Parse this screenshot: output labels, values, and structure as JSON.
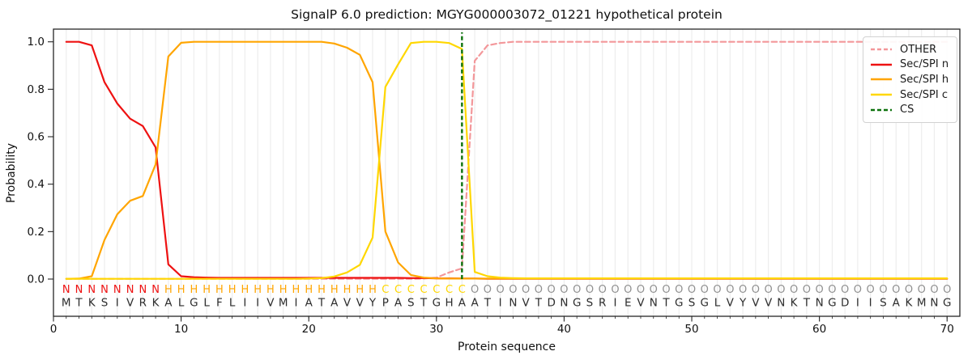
{
  "chart_data": {
    "type": "line",
    "title": "SignalP 6.0 prediction: MGYG000003072_01221 hypothetical protein",
    "xlabel": "Protein sequence",
    "ylabel": "Probability",
    "xlim": [
      0,
      71
    ],
    "ylim": [
      -0.157,
      1.053
    ],
    "x_ticks": [
      0,
      10,
      20,
      30,
      40,
      50,
      60,
      70
    ],
    "y_ticks": [
      0.0,
      0.2,
      0.4,
      0.6,
      0.8,
      1.0
    ],
    "grid": "vertical gridline at every residue position",
    "legend_position": "upper right",
    "x": "residue positions 1-70",
    "series": [
      {
        "name": "OTHER",
        "color": "#f3979a",
        "style": "dashed",
        "values": [
          0.001,
          0.001,
          0.001,
          0.001,
          0.001,
          0.001,
          0.001,
          0.001,
          0.001,
          0.001,
          0.001,
          0.001,
          0.001,
          0.001,
          0.001,
          0.001,
          0.001,
          0.001,
          0.001,
          0.001,
          0.001,
          0.001,
          0.001,
          0.001,
          0.001,
          0.001,
          0.001,
          0.001,
          0.002,
          0.006,
          0.028,
          0.045,
          0.92,
          0.985,
          0.995,
          1.0,
          1.0,
          1.0,
          1.0,
          1.0,
          1.0,
          1.0,
          1.0,
          1.0,
          1.0,
          1.0,
          1.0,
          1.0,
          1.0,
          1.0,
          1.0,
          1.0,
          1.0,
          1.0,
          1.0,
          1.0,
          1.0,
          1.0,
          1.0,
          1.0,
          1.0,
          1.0,
          1.0,
          1.0,
          1.0,
          1.0,
          1.0,
          1.0,
          1.0,
          1.0
        ]
      },
      {
        "name": "Sec/SPI n",
        "color": "#ee1111",
        "style": "solid",
        "values": [
          1.0,
          1.0,
          0.985,
          0.83,
          0.74,
          0.676,
          0.645,
          0.555,
          0.062,
          0.012,
          0.008,
          0.006,
          0.005,
          0.005,
          0.005,
          0.005,
          0.005,
          0.005,
          0.005,
          0.005,
          0.005,
          0.005,
          0.005,
          0.005,
          0.005,
          0.005,
          0.005,
          0.004,
          0.004,
          0.003,
          0.003,
          0.002,
          0.002,
          0.001,
          0.001,
          0.001,
          0.001,
          0.001,
          0.001,
          0.001,
          0.001,
          0.001,
          0.001,
          0.001,
          0.001,
          0.001,
          0.001,
          0.001,
          0.001,
          0.001,
          0.001,
          0.001,
          0.001,
          0.001,
          0.001,
          0.001,
          0.001,
          0.001,
          0.001,
          0.001,
          0.001,
          0.001,
          0.001,
          0.001,
          0.001,
          0.001,
          0.001,
          0.001,
          0.001,
          0.001
        ]
      },
      {
        "name": "Sec/SPI h",
        "color": "#ffa500",
        "style": "solid",
        "values": [
          0.001,
          0.002,
          0.012,
          0.165,
          0.273,
          0.33,
          0.35,
          0.483,
          0.938,
          0.996,
          1.0,
          1.0,
          1.0,
          1.0,
          1.0,
          1.0,
          1.0,
          1.0,
          1.0,
          1.0,
          1.0,
          0.993,
          0.975,
          0.945,
          0.83,
          0.2,
          0.07,
          0.017,
          0.006,
          0.003,
          0.002,
          0.002,
          0.002,
          0.002,
          0.002,
          0.002,
          0.002,
          0.002,
          0.002,
          0.002,
          0.002,
          0.002,
          0.002,
          0.002,
          0.002,
          0.002,
          0.002,
          0.002,
          0.002,
          0.002,
          0.002,
          0.002,
          0.002,
          0.002,
          0.002,
          0.002,
          0.002,
          0.002,
          0.002,
          0.002,
          0.002,
          0.002,
          0.002,
          0.002,
          0.002,
          0.002,
          0.002,
          0.002,
          0.002,
          0.002
        ]
      },
      {
        "name": "Sec/SPI c",
        "color": "#ffd700",
        "style": "solid",
        "values": [
          0.001,
          0.001,
          0.001,
          0.001,
          0.001,
          0.001,
          0.001,
          0.001,
          0.001,
          0.001,
          0.001,
          0.001,
          0.001,
          0.001,
          0.001,
          0.001,
          0.001,
          0.001,
          0.001,
          0.002,
          0.004,
          0.011,
          0.028,
          0.06,
          0.175,
          0.81,
          0.905,
          0.995,
          1.0,
          1.0,
          0.995,
          0.97,
          0.03,
          0.012,
          0.006,
          0.004,
          0.003,
          0.003,
          0.003,
          0.003,
          0.003,
          0.003,
          0.003,
          0.003,
          0.003,
          0.003,
          0.003,
          0.003,
          0.003,
          0.003,
          0.003,
          0.003,
          0.003,
          0.003,
          0.003,
          0.003,
          0.003,
          0.003,
          0.003,
          0.003,
          0.003,
          0.003,
          0.003,
          0.003,
          0.003,
          0.003,
          0.003,
          0.003,
          0.003,
          0.003
        ]
      },
      {
        "name": "CS",
        "color": "#0c720c",
        "style": "dashed-vline",
        "x": 32,
        "y_span": [
          0,
          1.04
        ]
      }
    ],
    "sequence": "MTKSIVRKALGLFLIIVMIATAVVYPASTGHAATINVTDNGSRIEVNTGSGLVYVVNKTNGDIISAKMNG",
    "regions": "NNNNNNNNHHHHHHHHHHHHHHHHHCCCCCCCOOOOOOOOOOOOOOOOOOOOOOOOOOOOOOOOOOOOOO",
    "region_colors": {
      "N": "#ee1111",
      "H": "#ffa500",
      "C": "#ffd700",
      "O": "#909090"
    },
    "sequence_color": "#2d2d2d",
    "gridline_color": "#ededed",
    "spine_color": "#262626"
  }
}
